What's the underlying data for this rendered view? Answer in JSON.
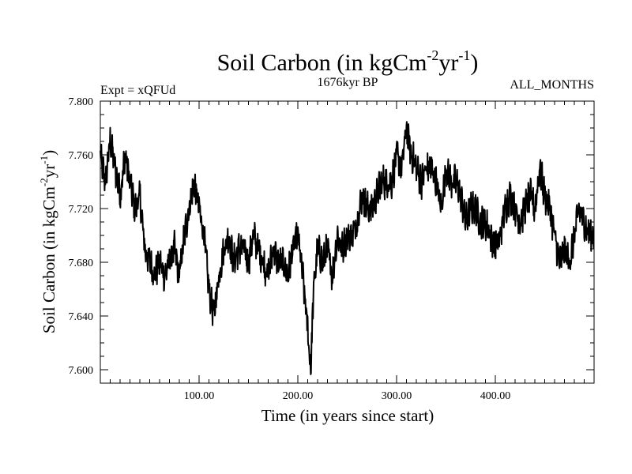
{
  "chart_data": {
    "type": "line",
    "title": {
      "base": "Soil Carbon (in kgCm",
      "sup1": "-2",
      "mid": "yr",
      "sup2": "-1",
      "end": ")"
    },
    "subtitle_left": "Expt = xQFUd",
    "subtitle_center": "1676kyr BP",
    "subtitle_right": "ALL_MONTHS",
    "xlabel": "Time (in years since start)",
    "ylabel": {
      "base": "Soil Carbon (in kgCm",
      "sup1": "-2",
      "mid": "yr",
      "sup2": "-1",
      "end": ")"
    },
    "xlim": [
      0,
      500
    ],
    "ylim": [
      7.59,
      7.8
    ],
    "xticks": [
      {
        "value": 100,
        "label": "100.00"
      },
      {
        "value": 200,
        "label": "200.00"
      },
      {
        "value": 300,
        "label": "300.00"
      },
      {
        "value": 400,
        "label": "400.00"
      }
    ],
    "yticks": [
      {
        "value": 7.6,
        "label": "7.600"
      },
      {
        "value": 7.64,
        "label": "7.640"
      },
      {
        "value": 7.68,
        "label": "7.680"
      },
      {
        "value": 7.72,
        "label": "7.720"
      },
      {
        "value": 7.76,
        "label": "7.760"
      },
      {
        "value": 7.8,
        "label": "7.800"
      }
    ],
    "series": [
      {
        "name": "Soil Carbon",
        "x": [
          0,
          5,
          10,
          15,
          20,
          25,
          30,
          35,
          40,
          45,
          50,
          55,
          60,
          65,
          70,
          75,
          80,
          85,
          90,
          95,
          100,
          105,
          110,
          115,
          120,
          125,
          130,
          135,
          140,
          145,
          150,
          155,
          160,
          165,
          170,
          175,
          180,
          185,
          190,
          195,
          200,
          205,
          210,
          213,
          216,
          220,
          225,
          230,
          235,
          240,
          245,
          250,
          255,
          260,
          265,
          270,
          275,
          280,
          285,
          290,
          295,
          300,
          305,
          310,
          315,
          320,
          325,
          330,
          335,
          340,
          345,
          350,
          355,
          360,
          365,
          370,
          375,
          380,
          385,
          390,
          395,
          400,
          405,
          410,
          415,
          420,
          425,
          430,
          435,
          440,
          445,
          450,
          455,
          460,
          465,
          470,
          475,
          480,
          485,
          490,
          495,
          500
        ],
        "values": [
          7.76,
          7.74,
          7.77,
          7.75,
          7.73,
          7.76,
          7.74,
          7.72,
          7.73,
          7.69,
          7.68,
          7.67,
          7.68,
          7.67,
          7.68,
          7.69,
          7.67,
          7.7,
          7.72,
          7.74,
          7.72,
          7.7,
          7.66,
          7.64,
          7.67,
          7.69,
          7.7,
          7.68,
          7.69,
          7.69,
          7.68,
          7.7,
          7.69,
          7.68,
          7.67,
          7.69,
          7.68,
          7.68,
          7.67,
          7.69,
          7.7,
          7.67,
          7.63,
          7.6,
          7.66,
          7.69,
          7.68,
          7.69,
          7.67,
          7.7,
          7.69,
          7.7,
          7.7,
          7.71,
          7.73,
          7.72,
          7.72,
          7.73,
          7.74,
          7.74,
          7.74,
          7.76,
          7.75,
          7.78,
          7.76,
          7.75,
          7.74,
          7.75,
          7.75,
          7.74,
          7.72,
          7.75,
          7.74,
          7.74,
          7.73,
          7.71,
          7.72,
          7.72,
          7.71,
          7.71,
          7.7,
          7.69,
          7.7,
          7.72,
          7.73,
          7.72,
          7.71,
          7.72,
          7.73,
          7.72,
          7.75,
          7.73,
          7.72,
          7.7,
          7.68,
          7.69,
          7.68,
          7.7,
          7.72,
          7.71,
          7.7,
          7.7
        ]
      }
    ]
  }
}
